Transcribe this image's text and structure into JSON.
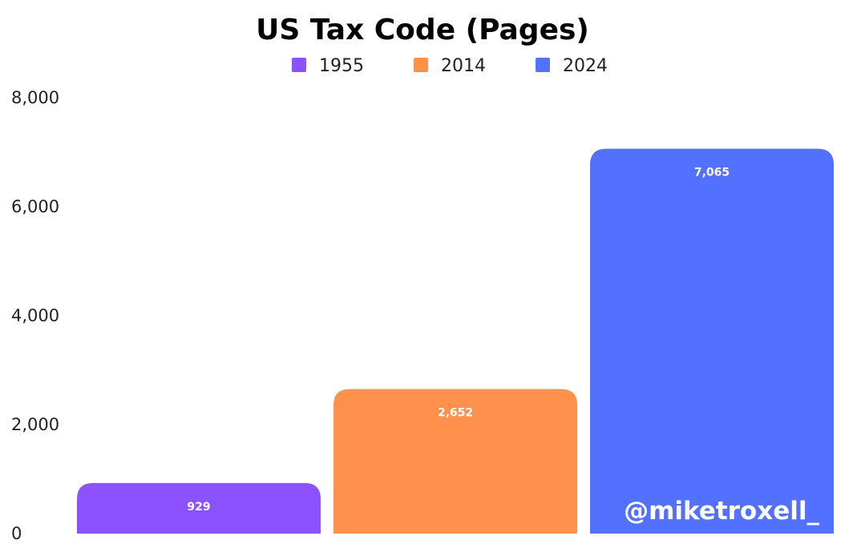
{
  "chart_data": {
    "type": "bar",
    "title": "US Tax Code (Pages)",
    "xlabel": "",
    "ylabel": "",
    "categories": [
      "1955",
      "2014",
      "2024"
    ],
    "values": [
      929,
      2652,
      7065
    ],
    "value_labels": [
      "929",
      "2,652",
      "7,065"
    ],
    "colors": [
      "#8c52ff",
      "#ff914d",
      "#5271ff"
    ],
    "ylim": [
      0,
      8000
    ],
    "yticks": [
      0,
      2000,
      4000,
      6000,
      8000
    ],
    "ytick_labels": [
      "0",
      "2,000",
      "4,000",
      "6,000",
      "8,000"
    ],
    "grid": false,
    "legend": {
      "position": "top-center",
      "entries": [
        "1955",
        "2014",
        "2024"
      ]
    }
  },
  "watermark": "@miketroxell_"
}
